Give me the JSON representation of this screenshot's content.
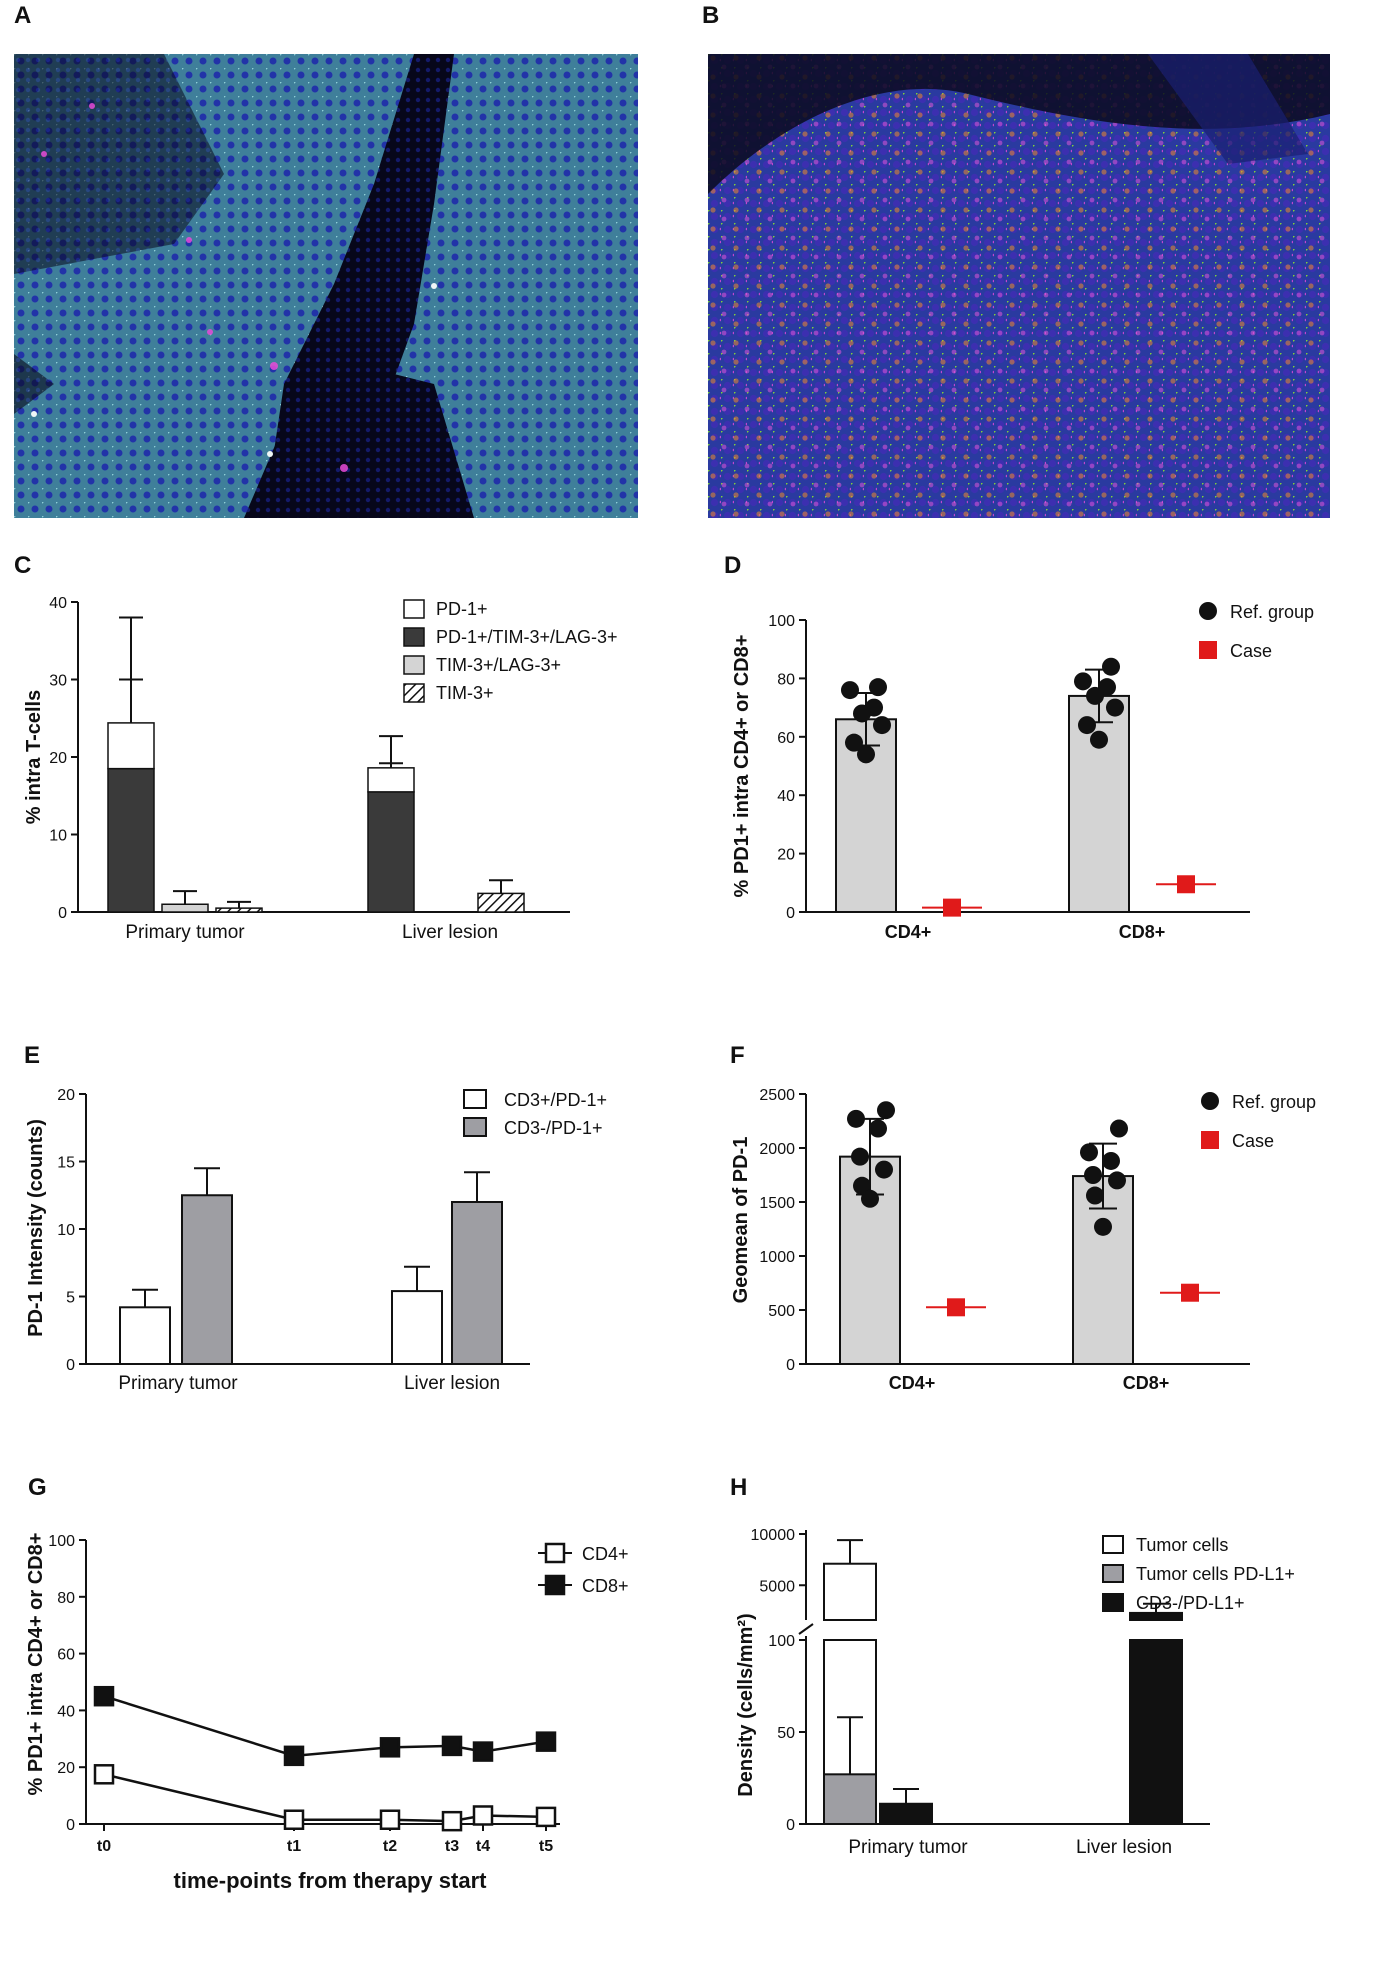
{
  "panel_labels": [
    "A",
    "B",
    "C",
    "D",
    "E",
    "F",
    "G",
    "H"
  ],
  "colors": {
    "dark": "#3a3a3a",
    "light": "#d4d4d4",
    "grey": "#9e9ea3",
    "red": "#e01a1a",
    "black": "#111111",
    "white": "#ffffff"
  },
  "images": [
    {
      "panel": "A",
      "description_icon": "fluorescence-micrograph-icon"
    },
    {
      "panel": "B",
      "description_icon": "fluorescence-micrograph-icon"
    }
  ],
  "chart_data": [
    {
      "panel": "C",
      "type": "bar",
      "stacked": true,
      "ylabel": "% intra T-cells",
      "ylim": [
        0,
        40
      ],
      "yticks": [
        0,
        10,
        20,
        30,
        40
      ],
      "groups": [
        "Primary tumor",
        "Liver lesion"
      ],
      "legend": [
        {
          "label": "PD-1+",
          "style": "white"
        },
        {
          "label": "PD-1+/TIM-3+/LAG-3+",
          "style": "dark"
        },
        {
          "label": "TIM-3+/LAG-3+",
          "style": "light"
        },
        {
          "label": "TIM-3+",
          "style": "hatch"
        }
      ],
      "bars": [
        {
          "group": "Primary tumor",
          "series": "PD-1+/TIM-3+/LAG-3+ + PD-1+",
          "segments": [
            {
              "style": "dark",
              "value": 18.5
            },
            {
              "style": "white",
              "value": 5.9
            }
          ],
          "errors": [
            {
              "y": 30
            },
            {
              "y": 38
            }
          ]
        },
        {
          "group": "Primary tumor",
          "series": "TIM-3+/LAG-3+",
          "segments": [
            {
              "style": "light",
              "value": 1.0
            }
          ],
          "errors": [
            {
              "y": 2.7
            }
          ]
        },
        {
          "group": "Primary tumor",
          "series": "TIM-3+",
          "segments": [
            {
              "style": "hatch",
              "value": 0.5
            }
          ],
          "errors": [
            {
              "y": 1.3
            }
          ]
        },
        {
          "group": "Liver lesion",
          "series": "PD-1+/TIM-3+/LAG-3+ + PD-1+",
          "segments": [
            {
              "style": "dark",
              "value": 15.5
            },
            {
              "style": "white",
              "value": 3.1
            }
          ],
          "errors": [
            {
              "y": 19.2
            },
            {
              "y": 22.7
            }
          ]
        },
        {
          "group": "Liver lesion",
          "series": "TIM-3+/LAG-3+",
          "segments": [],
          "errors": []
        },
        {
          "group": "Liver lesion",
          "series": "TIM-3+",
          "segments": [
            {
              "style": "hatch",
              "value": 2.4
            }
          ],
          "errors": [
            {
              "y": 4.1
            }
          ]
        }
      ]
    },
    {
      "panel": "D",
      "type": "bar+scatter",
      "ylabel": "% PD1+ intra CD4+ or CD8+",
      "ylim": [
        0,
        100
      ],
      "yticks": [
        0,
        20,
        40,
        60,
        80,
        100
      ],
      "categories": [
        "CD4+",
        "CD8+"
      ],
      "legend": [
        {
          "label": "Ref. group",
          "marker": "circle"
        },
        {
          "label": "Case",
          "marker": "square"
        }
      ],
      "ref_group": [
        {
          "category": "CD4+",
          "mean": 66,
          "sd": 9,
          "points": [
            77,
            76,
            70,
            68,
            64,
            58,
            54
          ]
        },
        {
          "category": "CD8+",
          "mean": 74,
          "sd": 9,
          "points": [
            84,
            79,
            77,
            74,
            70,
            64,
            59
          ]
        }
      ],
      "case": [
        {
          "category": "CD4+",
          "value": 1.5
        },
        {
          "category": "CD8+",
          "value": 9.5
        }
      ]
    },
    {
      "panel": "E",
      "type": "bar",
      "ylabel": "PD-1 Intensity (counts)",
      "ylim": [
        0,
        20
      ],
      "yticks": [
        0,
        5,
        10,
        15,
        20
      ],
      "categories": [
        "Primary tumor",
        "Liver lesion"
      ],
      "series": [
        {
          "name": "CD3+/PD-1+",
          "style": "white",
          "values": [
            4.2,
            5.4
          ],
          "errors": [
            5.5,
            7.2
          ]
        },
        {
          "name": "CD3-/PD-1+",
          "style": "grey",
          "values": [
            12.5,
            12.0
          ],
          "errors": [
            14.5,
            14.2
          ]
        }
      ]
    },
    {
      "panel": "F",
      "type": "bar+scatter",
      "ylabel": "Geomean of PD-1",
      "ylim": [
        0,
        2500
      ],
      "yticks": [
        0,
        500,
        1000,
        1500,
        2000,
        2500
      ],
      "categories": [
        "CD4+",
        "CD8+"
      ],
      "legend": [
        {
          "label": "Ref. group",
          "marker": "circle"
        },
        {
          "label": "Case",
          "marker": "square"
        }
      ],
      "ref_group": [
        {
          "category": "CD4+",
          "mean": 1920,
          "sd": 350,
          "points": [
            2350,
            2270,
            2180,
            1920,
            1800,
            1650,
            1530
          ]
        },
        {
          "category": "CD8+",
          "mean": 1740,
          "sd": 300,
          "points": [
            2180,
            1960,
            1880,
            1750,
            1700,
            1560,
            1270
          ]
        }
      ],
      "case": [
        {
          "category": "CD4+",
          "value": 525
        },
        {
          "category": "CD8+",
          "value": 660
        }
      ]
    },
    {
      "panel": "G",
      "type": "line",
      "ylabel": "% PD1+ intra CD4+ or CD8+",
      "xlabel": "time-points from therapy start",
      "ylim": [
        0,
        100
      ],
      "yticks": [
        0,
        20,
        40,
        60,
        80,
        100
      ],
      "x": [
        "t0",
        "t1",
        "t2",
        "t3",
        "t4",
        "t5"
      ],
      "series": [
        {
          "name": "CD4+",
          "marker": "open-square",
          "values": [
            17.5,
            1.5,
            1.5,
            1.0,
            3.0,
            2.5
          ]
        },
        {
          "name": "CD8+",
          "marker": "filled-square",
          "values": [
            45,
            24,
            27,
            27.5,
            25.5,
            29
          ]
        }
      ]
    },
    {
      "panel": "H",
      "type": "bar",
      "broken_axis": true,
      "ylabel": "Density (cells/mm²)",
      "yticks_lower": [
        0,
        50,
        100
      ],
      "yticks_upper": [
        5000,
        10000
      ],
      "categories": [
        "Primary tumor",
        "Liver lesion"
      ],
      "legend": [
        {
          "label": "Tumor cells",
          "style": "white"
        },
        {
          "label": "Tumor cells PD-L1+",
          "style": "grey"
        },
        {
          "label": "CD3-/PD-L1+",
          "style": "black"
        }
      ],
      "bars": [
        {
          "category": "Primary tumor",
          "series": "Tumor cells",
          "value": 7100,
          "error": 9400
        },
        {
          "category": "Primary tumor",
          "series": "Tumor cells PD-L1+",
          "value": 27,
          "error": 58
        },
        {
          "category": "Primary tumor",
          "series": "CD3-/PD-L1+",
          "value": 11,
          "error": 19
        },
        {
          "category": "Liver lesion",
          "series": "CD3-/PD-L1+",
          "value": 2300,
          "error": 3200
        }
      ]
    }
  ]
}
